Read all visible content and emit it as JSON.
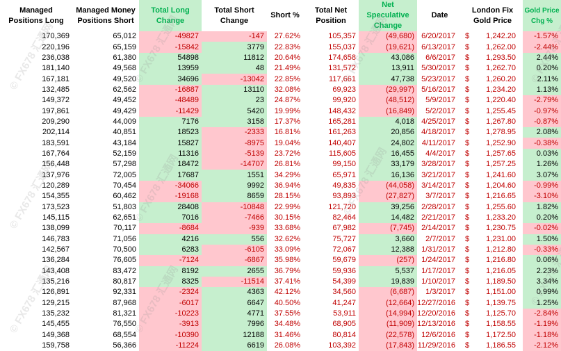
{
  "headers": {
    "long": "Managed Positions Long",
    "short": "Managed Money Positions Short",
    "total_long_change": "Total Long Change",
    "total_short_change": "Total Short Change",
    "short_pct": "Short %",
    "total_net": "Total Net Position",
    "net_spec_change": "Net Speculative Change",
    "date": "Date",
    "london_fix": "London Fix Gold Price",
    "gold_chg": "Gold Price Chg %"
  },
  "watermark": "© FX678 汇通网",
  "rows": [
    {
      "long": "170,369",
      "short": "65,012",
      "tlc": "-49827",
      "tsc": "-147",
      "pct": "27.62%",
      "net": "105,357",
      "nsc": "(49,680)",
      "date": "6/20/2017",
      "cur": "$",
      "price": "1,242.20",
      "chg": "-1.57%",
      "tlc_pos": false,
      "tsc_pos": false,
      "nsc_pos": false,
      "chg_pos": false
    },
    {
      "long": "220,196",
      "short": "65,159",
      "tlc": "-15842",
      "tsc": "3779",
      "pct": "22.83%",
      "net": "155,037",
      "nsc": "(19,621)",
      "date": "6/13/2017",
      "cur": "$",
      "price": "1,262.00",
      "chg": "-2.44%",
      "tlc_pos": false,
      "tsc_pos": true,
      "nsc_pos": false,
      "chg_pos": false
    },
    {
      "long": "236,038",
      "short": "61,380",
      "tlc": "54898",
      "tsc": "11812",
      "pct": "20.64%",
      "net": "174,658",
      "nsc": "43,086",
      "date": "6/6/2017",
      "cur": "$",
      "price": "1,293.50",
      "chg": "2.44%",
      "tlc_pos": true,
      "tsc_pos": true,
      "nsc_pos": true,
      "chg_pos": true
    },
    {
      "long": "181,140",
      "short": "49,568",
      "tlc": "13959",
      "tsc": "48",
      "pct": "21.49%",
      "net": "131,572",
      "nsc": "13,911",
      "date": "5/30/2017",
      "cur": "$",
      "price": "1,262.70",
      "chg": "0.20%",
      "tlc_pos": true,
      "tsc_pos": true,
      "nsc_pos": true,
      "chg_pos": true
    },
    {
      "long": "167,181",
      "short": "49,520",
      "tlc": "34696",
      "tsc": "-13042",
      "pct": "22.85%",
      "net": "117,661",
      "nsc": "47,738",
      "date": "5/23/2017",
      "cur": "$",
      "price": "1,260.20",
      "chg": "2.11%",
      "tlc_pos": true,
      "tsc_pos": false,
      "nsc_pos": true,
      "chg_pos": true
    },
    {
      "long": "132,485",
      "short": "62,562",
      "tlc": "-16887",
      "tsc": "13110",
      "pct": "32.08%",
      "net": "69,923",
      "nsc": "(29,997)",
      "date": "5/16/2017",
      "cur": "$",
      "price": "1,234.20",
      "chg": "1.13%",
      "tlc_pos": false,
      "tsc_pos": true,
      "nsc_pos": false,
      "chg_pos": true
    },
    {
      "long": "149,372",
      "short": "49,452",
      "tlc": "-48489",
      "tsc": "23",
      "pct": "24.87%",
      "net": "99,920",
      "nsc": "(48,512)",
      "date": "5/9/2017",
      "cur": "$",
      "price": "1,220.40",
      "chg": "-2.79%",
      "tlc_pos": false,
      "tsc_pos": true,
      "nsc_pos": false,
      "chg_pos": false
    },
    {
      "long": "197,861",
      "short": "49,429",
      "tlc": "-11429",
      "tsc": "5420",
      "pct": "19.99%",
      "net": "148,432",
      "nsc": "(16,849)",
      "date": "5/2/2017",
      "cur": "$",
      "price": "1,255.45",
      "chg": "-0.97%",
      "tlc_pos": false,
      "tsc_pos": true,
      "nsc_pos": false,
      "chg_pos": false
    },
    {
      "long": "209,290",
      "short": "44,009",
      "tlc": "7176",
      "tsc": "3158",
      "pct": "17.37%",
      "net": "165,281",
      "nsc": "4,018",
      "date": "4/25/2017",
      "cur": "$",
      "price": "1,267.80",
      "chg": "-0.87%",
      "tlc_pos": true,
      "tsc_pos": true,
      "nsc_pos": true,
      "chg_pos": false
    },
    {
      "long": "202,114",
      "short": "40,851",
      "tlc": "18523",
      "tsc": "-2333",
      "pct": "16.81%",
      "net": "161,263",
      "nsc": "20,856",
      "date": "4/18/2017",
      "cur": "$",
      "price": "1,278.95",
      "chg": "2.08%",
      "tlc_pos": true,
      "tsc_pos": false,
      "nsc_pos": true,
      "chg_pos": true
    },
    {
      "long": "183,591",
      "short": "43,184",
      "tlc": "15827",
      "tsc": "-8975",
      "pct": "19.04%",
      "net": "140,407",
      "nsc": "24,802",
      "date": "4/11/2017",
      "cur": "$",
      "price": "1,252.90",
      "chg": "-0.38%",
      "tlc_pos": true,
      "tsc_pos": false,
      "nsc_pos": true,
      "chg_pos": false
    },
    {
      "long": "167,764",
      "short": "52,159",
      "tlc": "11316",
      "tsc": "-5139",
      "pct": "23.72%",
      "net": "115,605",
      "nsc": "16,455",
      "date": "4/4/2017",
      "cur": "$",
      "price": "1,257.65",
      "chg": "0.03%",
      "tlc_pos": true,
      "tsc_pos": false,
      "nsc_pos": true,
      "chg_pos": true
    },
    {
      "long": "156,448",
      "short": "57,298",
      "tlc": "18472",
      "tsc": "-14707",
      "pct": "26.81%",
      "net": "99,150",
      "nsc": "33,179",
      "date": "3/28/2017",
      "cur": "$",
      "price": "1,257.25",
      "chg": "1.26%",
      "tlc_pos": true,
      "tsc_pos": false,
      "nsc_pos": true,
      "chg_pos": true
    },
    {
      "long": "137,976",
      "short": "72,005",
      "tlc": "17687",
      "tsc": "1551",
      "pct": "34.29%",
      "net": "65,971",
      "nsc": "16,136",
      "date": "3/21/2017",
      "cur": "$",
      "price": "1,241.60",
      "chg": "3.07%",
      "tlc_pos": true,
      "tsc_pos": true,
      "nsc_pos": true,
      "chg_pos": true
    },
    {
      "long": "120,289",
      "short": "70,454",
      "tlc": "-34066",
      "tsc": "9992",
      "pct": "36.94%",
      "net": "49,835",
      "nsc": "(44,058)",
      "date": "3/14/2017",
      "cur": "$",
      "price": "1,204.60",
      "chg": "-0.99%",
      "tlc_pos": false,
      "tsc_pos": true,
      "nsc_pos": false,
      "chg_pos": false
    },
    {
      "long": "154,355",
      "short": "60,462",
      "tlc": "-19168",
      "tsc": "8659",
      "pct": "28.15%",
      "net": "93,893",
      "nsc": "(27,827)",
      "date": "3/7/2017",
      "cur": "$",
      "price": "1,216.65",
      "chg": "-3.10%",
      "tlc_pos": false,
      "tsc_pos": true,
      "nsc_pos": false,
      "chg_pos": false
    },
    {
      "long": "173,523",
      "short": "51,803",
      "tlc": "28408",
      "tsc": "-10848",
      "pct": "22.99%",
      "net": "121,720",
      "nsc": "39,256",
      "date": "2/28/2017",
      "cur": "$",
      "price": "1,255.60",
      "chg": "1.82%",
      "tlc_pos": true,
      "tsc_pos": false,
      "nsc_pos": true,
      "chg_pos": true
    },
    {
      "long": "145,115",
      "short": "62,651",
      "tlc": "7016",
      "tsc": "-7466",
      "pct": "30.15%",
      "net": "82,464",
      "nsc": "14,482",
      "date": "2/21/2017",
      "cur": "$",
      "price": "1,233.20",
      "chg": "0.20%",
      "tlc_pos": true,
      "tsc_pos": false,
      "nsc_pos": true,
      "chg_pos": true
    },
    {
      "long": "138,099",
      "short": "70,117",
      "tlc": "-8684",
      "tsc": "-939",
      "pct": "33.68%",
      "net": "67,982",
      "nsc": "(7,745)",
      "date": "2/14/2017",
      "cur": "$",
      "price": "1,230.75",
      "chg": "-0.02%",
      "tlc_pos": false,
      "tsc_pos": false,
      "nsc_pos": false,
      "chg_pos": false
    },
    {
      "long": "146,783",
      "short": "71,056",
      "tlc": "4216",
      "tsc": "556",
      "pct": "32.62%",
      "net": "75,727",
      "nsc": "3,660",
      "date": "2/7/2017",
      "cur": "$",
      "price": "1,231.00",
      "chg": "1.50%",
      "tlc_pos": true,
      "tsc_pos": true,
      "nsc_pos": true,
      "chg_pos": true
    },
    {
      "long": "142,567",
      "short": "70,500",
      "tlc": "6283",
      "tsc": "-6105",
      "pct": "33.09%",
      "net": "72,067",
      "nsc": "12,388",
      "date": "1/31/2017",
      "cur": "$",
      "price": "1,212.80",
      "chg": "-0.33%",
      "tlc_pos": true,
      "tsc_pos": false,
      "nsc_pos": true,
      "chg_pos": false
    },
    {
      "long": "136,284",
      "short": "76,605",
      "tlc": "-7124",
      "tsc": "-6867",
      "pct": "35.98%",
      "net": "59,679",
      "nsc": "(257)",
      "date": "1/24/2017",
      "cur": "$",
      "price": "1,216.80",
      "chg": "0.06%",
      "tlc_pos": false,
      "tsc_pos": false,
      "nsc_pos": false,
      "chg_pos": true
    },
    {
      "long": "143,408",
      "short": "83,472",
      "tlc": "8192",
      "tsc": "2655",
      "pct": "36.79%",
      "net": "59,936",
      "nsc": "5,537",
      "date": "1/17/2017",
      "cur": "$",
      "price": "1,216.05",
      "chg": "2.23%",
      "tlc_pos": true,
      "tsc_pos": true,
      "nsc_pos": true,
      "chg_pos": true
    },
    {
      "long": "135,216",
      "short": "80,817",
      "tlc": "8325",
      "tsc": "-11514",
      "pct": "37.41%",
      "net": "54,399",
      "nsc": "19,839",
      "date": "1/10/2017",
      "cur": "$",
      "price": "1,189.50",
      "chg": "3.34%",
      "tlc_pos": true,
      "tsc_pos": false,
      "nsc_pos": true,
      "chg_pos": true
    },
    {
      "long": "126,891",
      "short": "92,331",
      "tlc": "-2324",
      "tsc": "4363",
      "pct": "42.12%",
      "net": "34,560",
      "nsc": "(6,687)",
      "date": "1/3/2017",
      "cur": "$",
      "price": "1,151.00",
      "chg": "0.99%",
      "tlc_pos": false,
      "tsc_pos": true,
      "nsc_pos": false,
      "chg_pos": true
    },
    {
      "long": "129,215",
      "short": "87,968",
      "tlc": "-6017",
      "tsc": "6647",
      "pct": "40.50%",
      "net": "41,247",
      "nsc": "(12,664)",
      "date": "12/27/2016",
      "cur": "$",
      "price": "1,139.75",
      "chg": "1.25%",
      "tlc_pos": false,
      "tsc_pos": true,
      "nsc_pos": false,
      "chg_pos": true
    },
    {
      "long": "135,232",
      "short": "81,321",
      "tlc": "-10223",
      "tsc": "4771",
      "pct": "37.55%",
      "net": "53,911",
      "nsc": "(14,994)",
      "date": "12/20/2016",
      "cur": "$",
      "price": "1,125.70",
      "chg": "-2.84%",
      "tlc_pos": false,
      "tsc_pos": true,
      "nsc_pos": false,
      "chg_pos": false
    },
    {
      "long": "145,455",
      "short": "76,550",
      "tlc": "-3913",
      "tsc": "7996",
      "pct": "34.48%",
      "net": "68,905",
      "nsc": "(11,909)",
      "date": "12/13/2016",
      "cur": "$",
      "price": "1,158.55",
      "chg": "-1.19%",
      "tlc_pos": false,
      "tsc_pos": true,
      "nsc_pos": false,
      "chg_pos": false
    },
    {
      "long": "149,368",
      "short": "68,554",
      "tlc": "-10390",
      "tsc": "12188",
      "pct": "31.46%",
      "net": "80,814",
      "nsc": "(22,578)",
      "date": "12/6/2016",
      "cur": "$",
      "price": "1,172.50",
      "chg": "-1.18%",
      "tlc_pos": false,
      "tsc_pos": true,
      "nsc_pos": false,
      "chg_pos": false
    },
    {
      "long": "159,758",
      "short": "56,366",
      "tlc": "-11224",
      "tsc": "6619",
      "pct": "26.08%",
      "net": "103,392",
      "nsc": "(17,843)",
      "date": "11/29/2016",
      "cur": "$",
      "price": "1,186.55",
      "chg": "-2.12%",
      "tlc_pos": false,
      "tsc_pos": true,
      "nsc_pos": false,
      "chg_pos": false
    }
  ]
}
